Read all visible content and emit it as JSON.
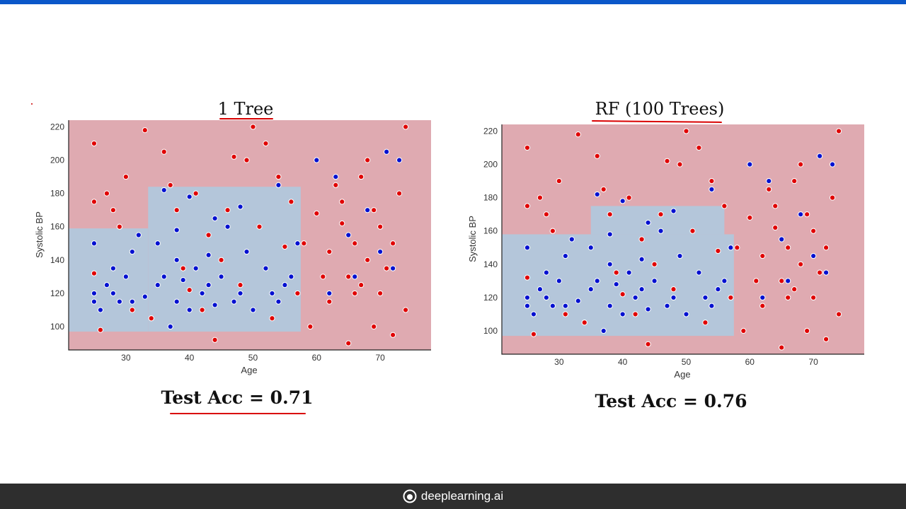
{
  "colors": {
    "top_bar": "#0a57c9",
    "footer_bg": "#2e2e2e",
    "region_red": "#dfaab1",
    "region_blue": "#b4c6da",
    "point_red": "#e00000",
    "point_blue": "#0010d0",
    "annotation": "#d90000"
  },
  "footer": {
    "brand": "deeplearning.ai",
    "icon": "deeplearning-logo-icon"
  },
  "chart_data": [
    {
      "type": "scatter",
      "title": "1 Tree",
      "xlabel": "Age",
      "ylabel": "Systolic BP",
      "xlim": [
        21,
        78
      ],
      "ylim": [
        86,
        224
      ],
      "xticks": [
        30,
        40,
        50,
        60,
        70
      ],
      "yticks": [
        100,
        120,
        140,
        160,
        180,
        200,
        220
      ],
      "grid": false,
      "test_accuracy_label": "Test Acc = 0.71",
      "decision_regions": [
        {
          "class": "blue",
          "x": [
            21,
            33.5
          ],
          "y": [
            97,
            159
          ]
        },
        {
          "class": "blue",
          "x": [
            33.5,
            57.5
          ],
          "y": [
            97,
            184
          ]
        }
      ],
      "series": [
        {
          "color": "blue",
          "points": [
            [
              25,
              115
            ],
            [
              25,
              120
            ],
            [
              25,
              150
            ],
            [
              26,
              110
            ],
            [
              27,
              125
            ],
            [
              28,
              120
            ],
            [
              28,
              135
            ],
            [
              29,
              115
            ],
            [
              30,
              130
            ],
            [
              31,
              115
            ],
            [
              31,
              145
            ],
            [
              32,
              155
            ],
            [
              33,
              118
            ],
            [
              34,
              105
            ],
            [
              35,
              125
            ],
            [
              36,
              130
            ],
            [
              37,
              100
            ],
            [
              38,
              115
            ],
            [
              38,
              140
            ],
            [
              39,
              128
            ],
            [
              40,
              110
            ],
            [
              41,
              135
            ],
            [
              42,
              120
            ],
            [
              43,
              125
            ],
            [
              44,
              113
            ],
            [
              45,
              130
            ],
            [
              46,
              160
            ],
            [
              47,
              115
            ],
            [
              48,
              120
            ],
            [
              49,
              145
            ],
            [
              50,
              110
            ],
            [
              52,
              135
            ],
            [
              53,
              120
            ],
            [
              54,
              115
            ],
            [
              55,
              125
            ],
            [
              56,
              130
            ],
            [
              36,
              182
            ],
            [
              40,
              178
            ],
            [
              44,
              165
            ],
            [
              48,
              172
            ],
            [
              54,
              185
            ],
            [
              57,
              150
            ],
            [
              60,
              200
            ],
            [
              62,
              120
            ],
            [
              63,
              190
            ],
            [
              65,
              155
            ],
            [
              66,
              130
            ],
            [
              68,
              170
            ],
            [
              70,
              145
            ],
            [
              71,
              205
            ],
            [
              72,
              135
            ],
            [
              73,
              200
            ],
            [
              29,
              160
            ],
            [
              35,
              150
            ],
            [
              38,
              158
            ],
            [
              43,
              143
            ]
          ]
        },
        {
          "color": "red",
          "points": [
            [
              25,
              210
            ],
            [
              25,
              175
            ],
            [
              25,
              132
            ],
            [
              26,
              98
            ],
            [
              27,
              180
            ],
            [
              28,
              170
            ],
            [
              29,
              160
            ],
            [
              30,
              190
            ],
            [
              31,
              110
            ],
            [
              33,
              218
            ],
            [
              34,
              105
            ],
            [
              36,
              205
            ],
            [
              37,
              185
            ],
            [
              38,
              170
            ],
            [
              39,
              135
            ],
            [
              40,
              122
            ],
            [
              41,
              180
            ],
            [
              42,
              110
            ],
            [
              43,
              155
            ],
            [
              44,
              92
            ],
            [
              45,
              140
            ],
            [
              46,
              170
            ],
            [
              47,
              202
            ],
            [
              48,
              125
            ],
            [
              49,
              200
            ],
            [
              50,
              220
            ],
            [
              51,
              160
            ],
            [
              52,
              210
            ],
            [
              53,
              105
            ],
            [
              54,
              190
            ],
            [
              55,
              148
            ],
            [
              56,
              175
            ],
            [
              57,
              120
            ],
            [
              58,
              150
            ],
            [
              59,
              100
            ],
            [
              60,
              168
            ],
            [
              61,
              130
            ],
            [
              62,
              115
            ],
            [
              63,
              185
            ],
            [
              64,
              175
            ],
            [
              65,
              90
            ],
            [
              66,
              150
            ],
            [
              67,
              125
            ],
            [
              68,
              200
            ],
            [
              69,
              100
            ],
            [
              70,
              160
            ],
            [
              71,
              135
            ],
            [
              72,
              95
            ],
            [
              73,
              180
            ],
            [
              74,
              220
            ],
            [
              74,
              110
            ],
            [
              62,
              145
            ],
            [
              64,
              162
            ],
            [
              66,
              120
            ],
            [
              68,
              140
            ],
            [
              70,
              120
            ],
            [
              72,
              150
            ],
            [
              65,
              130
            ],
            [
              67,
              190
            ],
            [
              69,
              170
            ]
          ]
        }
      ]
    },
    {
      "type": "scatter",
      "title": "RF (100 Trees)",
      "xlabel": "Age",
      "ylabel": "Systolic BP",
      "xlim": [
        21,
        78
      ],
      "ylim": [
        86,
        224
      ],
      "xticks": [
        30,
        40,
        50,
        60,
        70
      ],
      "yticks": [
        100,
        120,
        140,
        160,
        180,
        200,
        220
      ],
      "grid": false,
      "test_accuracy_label": "Test Acc = 0.76",
      "decision_regions": [
        {
          "class": "blue",
          "x": [
            21,
            57.5
          ],
          "y": [
            97,
            158
          ]
        },
        {
          "class": "blue",
          "x": [
            35,
            56
          ],
          "y": [
            158,
            175
          ]
        }
      ],
      "series": [
        {
          "color": "blue",
          "points": [
            [
              25,
              115
            ],
            [
              25,
              120
            ],
            [
              25,
              150
            ],
            [
              26,
              110
            ],
            [
              27,
              125
            ],
            [
              28,
              120
            ],
            [
              28,
              135
            ],
            [
              29,
              115
            ],
            [
              30,
              130
            ],
            [
              31,
              115
            ],
            [
              31,
              145
            ],
            [
              32,
              155
            ],
            [
              33,
              118
            ],
            [
              34,
              105
            ],
            [
              35,
              125
            ],
            [
              36,
              130
            ],
            [
              37,
              100
            ],
            [
              38,
              115
            ],
            [
              38,
              140
            ],
            [
              39,
              128
            ],
            [
              40,
              110
            ],
            [
              41,
              135
            ],
            [
              42,
              120
            ],
            [
              43,
              125
            ],
            [
              44,
              113
            ],
            [
              45,
              130
            ],
            [
              46,
              160
            ],
            [
              47,
              115
            ],
            [
              48,
              120
            ],
            [
              49,
              145
            ],
            [
              50,
              110
            ],
            [
              52,
              135
            ],
            [
              53,
              120
            ],
            [
              54,
              115
            ],
            [
              55,
              125
            ],
            [
              56,
              130
            ],
            [
              36,
              182
            ],
            [
              40,
              178
            ],
            [
              44,
              165
            ],
            [
              48,
              172
            ],
            [
              54,
              185
            ],
            [
              57,
              150
            ],
            [
              60,
              200
            ],
            [
              62,
              120
            ],
            [
              63,
              190
            ],
            [
              65,
              155
            ],
            [
              66,
              130
            ],
            [
              68,
              170
            ],
            [
              70,
              145
            ],
            [
              71,
              205
            ],
            [
              72,
              135
            ],
            [
              73,
              200
            ],
            [
              29,
              160
            ],
            [
              35,
              150
            ],
            [
              38,
              158
            ],
            [
              43,
              143
            ]
          ]
        },
        {
          "color": "red",
          "points": [
            [
              25,
              210
            ],
            [
              25,
              175
            ],
            [
              25,
              132
            ],
            [
              26,
              98
            ],
            [
              27,
              180
            ],
            [
              28,
              170
            ],
            [
              29,
              160
            ],
            [
              30,
              190
            ],
            [
              31,
              110
            ],
            [
              33,
              218
            ],
            [
              34,
              105
            ],
            [
              36,
              205
            ],
            [
              37,
              185
            ],
            [
              38,
              170
            ],
            [
              39,
              135
            ],
            [
              40,
              122
            ],
            [
              41,
              180
            ],
            [
              42,
              110
            ],
            [
              43,
              155
            ],
            [
              44,
              92
            ],
            [
              45,
              140
            ],
            [
              46,
              170
            ],
            [
              47,
              202
            ],
            [
              48,
              125
            ],
            [
              49,
              200
            ],
            [
              50,
              220
            ],
            [
              51,
              160
            ],
            [
              52,
              210
            ],
            [
              53,
              105
            ],
            [
              54,
              190
            ],
            [
              55,
              148
            ],
            [
              56,
              175
            ],
            [
              57,
              120
            ],
            [
              58,
              150
            ],
            [
              59,
              100
            ],
            [
              60,
              168
            ],
            [
              61,
              130
            ],
            [
              62,
              115
            ],
            [
              63,
              185
            ],
            [
              64,
              175
            ],
            [
              65,
              90
            ],
            [
              66,
              150
            ],
            [
              67,
              125
            ],
            [
              68,
              200
            ],
            [
              69,
              100
            ],
            [
              70,
              160
            ],
            [
              71,
              135
            ],
            [
              72,
              95
            ],
            [
              73,
              180
            ],
            [
              74,
              220
            ],
            [
              74,
              110
            ],
            [
              62,
              145
            ],
            [
              64,
              162
            ],
            [
              66,
              120
            ],
            [
              68,
              140
            ],
            [
              70,
              120
            ],
            [
              72,
              150
            ],
            [
              65,
              130
            ],
            [
              67,
              190
            ],
            [
              69,
              170
            ]
          ]
        }
      ]
    }
  ]
}
